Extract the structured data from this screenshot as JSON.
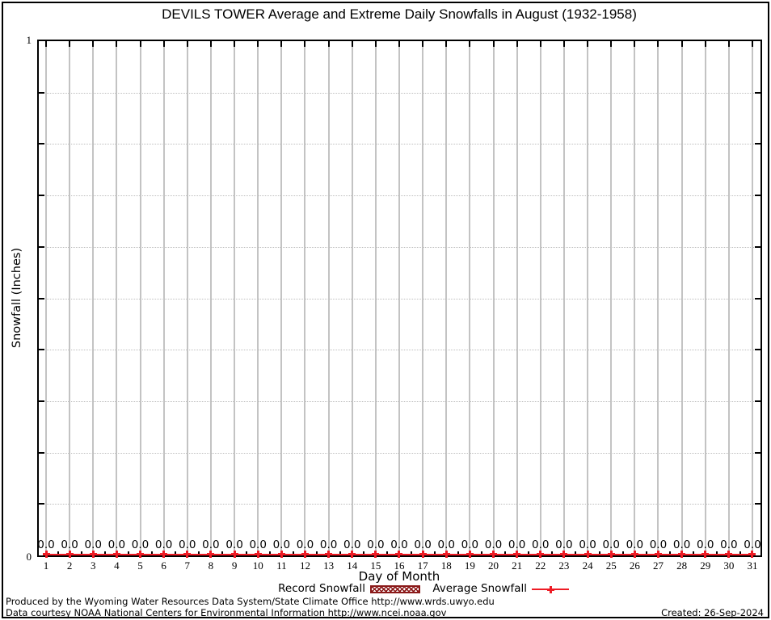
{
  "title": "DEVILS TOWER Average and Extreme Daily Snowfalls in August (1932-1958)",
  "chart_data": {
    "type": "line",
    "x": [
      1,
      2,
      3,
      4,
      5,
      6,
      7,
      8,
      9,
      10,
      11,
      12,
      13,
      14,
      15,
      16,
      17,
      18,
      19,
      20,
      21,
      22,
      23,
      24,
      25,
      26,
      27,
      28,
      29,
      30,
      31
    ],
    "series": [
      {
        "name": "Record Snowfall",
        "values": [
          0.0,
          0.0,
          0.0,
          0.0,
          0.0,
          0.0,
          0.0,
          0.0,
          0.0,
          0.0,
          0.0,
          0.0,
          0.0,
          0.0,
          0.0,
          0.0,
          0.0,
          0.0,
          0.0,
          0.0,
          0.0,
          0.0,
          0.0,
          0.0,
          0.0,
          0.0,
          0.0,
          0.0,
          0.0,
          0.0,
          0.0
        ]
      },
      {
        "name": "Average Snowfall",
        "values": [
          0.0,
          0.0,
          0.0,
          0.0,
          0.0,
          0.0,
          0.0,
          0.0,
          0.0,
          0.0,
          0.0,
          0.0,
          0.0,
          0.0,
          0.0,
          0.0,
          0.0,
          0.0,
          0.0,
          0.0,
          0.0,
          0.0,
          0.0,
          0.0,
          0.0,
          0.0,
          0.0,
          0.0,
          0.0,
          0.0,
          0.0
        ]
      }
    ],
    "point_labels": [
      "0.0",
      "0.0",
      "0.0",
      "0.0",
      "0.0",
      "0.0",
      "0.0",
      "0.0",
      "0.0",
      "0.0",
      "0.0",
      "0.0",
      "0.0",
      "0.0",
      "0.0",
      "0.0",
      "0.0",
      "0.0",
      "0.0",
      "0.0",
      "0.0",
      "0.0",
      "0.0",
      "0.0",
      "0.0",
      "0.0",
      "0.0",
      "0.0",
      "0.0",
      "0.0",
      "0.0"
    ],
    "title": "DEVILS TOWER Average and Extreme Daily Snowfalls in August (1932-1958)",
    "xlabel": "Day of Month",
    "ylabel": "Snowfall (Inches)",
    "ylim": [
      0,
      1
    ],
    "ytick_major_labels": [
      "0",
      "1"
    ],
    "y_minor_grid_step": 0.1,
    "grid": true,
    "legend_position": "bottom-center"
  },
  "legend": {
    "record_label": "Record Snowfall",
    "average_label": "Average Snowfall"
  },
  "footer": {
    "line1": "Produced by the Wyoming Water Resources Data System/State Climate Office http://www.wrds.uwyo.edu",
    "line2": "Data courtesy NOAA National Centers for Environmental Information http://www.ncei.noaa.gov",
    "created": "Created: 26-Sep-2024"
  },
  "colors": {
    "series_red": "#ee1c25",
    "record_dark_red": "#8b1a1a",
    "grid_gray": "#c3c3c3",
    "border_black": "#000000"
  }
}
